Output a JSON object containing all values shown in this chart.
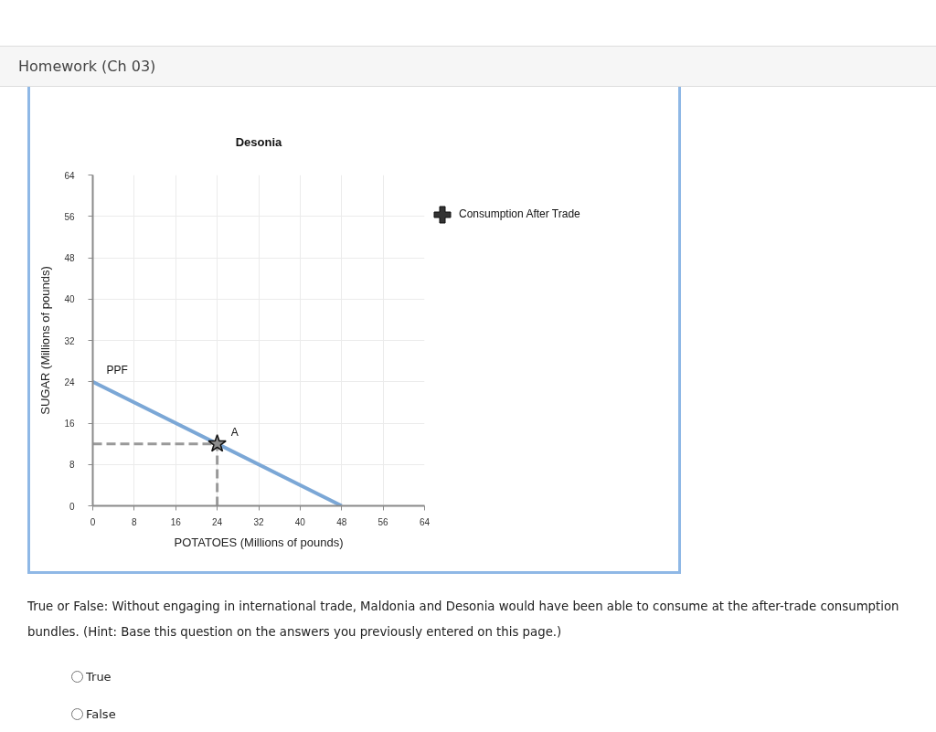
{
  "chart_data": {
    "type": "line",
    "title": "Desonia",
    "xlabel": "POTATOES (Millions of pounds)",
    "ylabel": "SUGAR (Millions of pounds)",
    "xlim": [
      0,
      64
    ],
    "ylim": [
      0,
      64
    ],
    "xticks": [
      0,
      8,
      16,
      24,
      32,
      40,
      48,
      56,
      64
    ],
    "yticks": [
      0,
      8,
      16,
      24,
      32,
      40,
      48,
      56,
      64
    ],
    "grid": true,
    "legend": "right",
    "series": [
      {
        "name": "PPF",
        "color": "#7ba7d6",
        "line_style": "solid",
        "x": [
          0,
          48
        ],
        "values": [
          24,
          0
        ]
      },
      {
        "color": "#999999",
        "line_style": "dashed",
        "x": [
          0,
          24
        ],
        "values": [
          12,
          12
        ]
      },
      {
        "color": "#999999",
        "line_style": "dashed",
        "x": [
          24,
          24
        ],
        "values": [
          0,
          12
        ]
      },
      {
        "name": "A",
        "type": "scatter",
        "color": "#8c8c8c",
        "marker": "star",
        "x": [
          24
        ],
        "values": [
          12
        ]
      },
      {
        "name": "Consumption After Trade",
        "type": "scatter",
        "color": "#333333",
        "marker": "cross"
      }
    ],
    "annotations": [
      "Homework (Ch 03)",
      "True or False: Without engaging in international trade, Maldonia and Desonia would have been able to consume at the after-trade consumption bundles. (Hint: Base this question on the answers you previously entered on this page.)",
      "True",
      "False"
    ]
  }
}
